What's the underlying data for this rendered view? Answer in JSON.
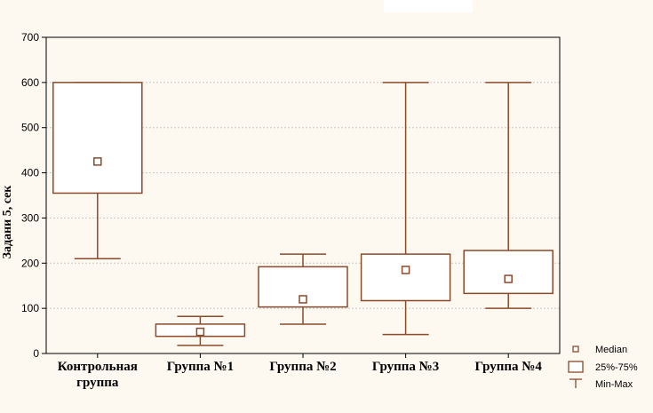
{
  "chart_data": {
    "type": "boxplot",
    "title": "",
    "xlabel": "",
    "ylabel": "Задани 5, сек",
    "ylim": [
      0,
      700
    ],
    "yticks": [
      0,
      100,
      200,
      300,
      400,
      500,
      600,
      700
    ],
    "grid": true,
    "legend_position": "bottom-right",
    "box_color": "#8b4a2b",
    "categories": [
      [
        "Контрольная",
        "группа"
      ],
      [
        "Группа №1"
      ],
      [
        "Группа №2"
      ],
      [
        "Группа №3"
      ],
      [
        "Группа №4"
      ]
    ],
    "boxes": [
      {
        "min": 210,
        "q1": 355,
        "median": 425,
        "q3": 600,
        "max": 600
      },
      {
        "min": 18,
        "q1": 38,
        "median": 48,
        "q3": 65,
        "max": 82
      },
      {
        "min": 65,
        "q1": 103,
        "median": 120,
        "q3": 192,
        "max": 220
      },
      {
        "min": 42,
        "q1": 117,
        "median": 185,
        "q3": 220,
        "max": 600
      },
      {
        "min": 100,
        "q1": 133,
        "median": 165,
        "q3": 228,
        "max": 600
      }
    ],
    "legend": {
      "median": "Median",
      "box": "25%-75%",
      "whisker": "Min-Max"
    }
  }
}
